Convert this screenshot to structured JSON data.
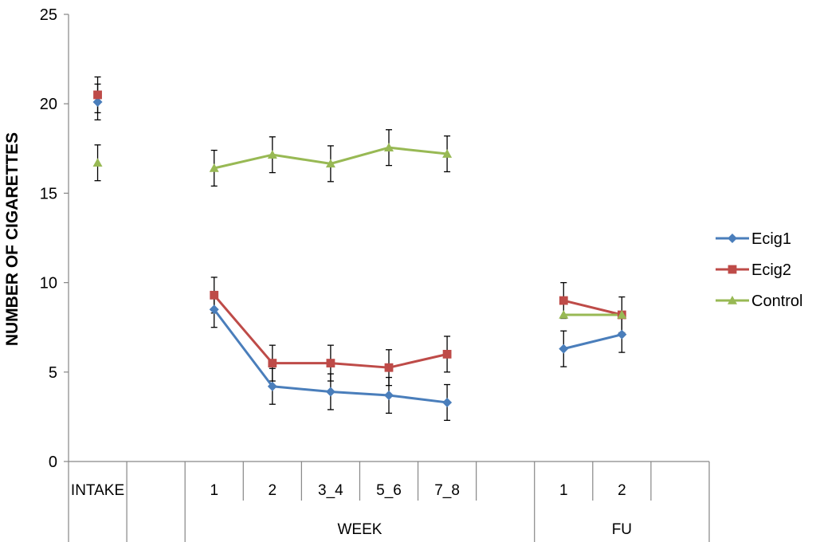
{
  "chart_data": {
    "type": "line",
    "title": "",
    "xlabel": "",
    "ylabel": "NUMBER OF CIGARETTES",
    "ylim": [
      0,
      25
    ],
    "yticks": [
      0,
      5,
      10,
      15,
      20,
      25
    ],
    "grid": false,
    "legend_position": "right",
    "categories": [
      "INTAKE",
      "",
      "1",
      "2",
      "3_4",
      "5_6",
      "7_8",
      "",
      "1",
      "2",
      ""
    ],
    "groups": [
      {
        "label": "WEEK",
        "start": 2,
        "end": 7
      },
      {
        "label": "FU",
        "start": 8,
        "end": 10
      }
    ],
    "series": [
      {
        "name": "Ecig1",
        "color": "#4a7ebb",
        "marker": "diamond",
        "values": [
          20.1,
          null,
          8.5,
          4.2,
          3.9,
          3.7,
          3.3,
          null,
          6.3,
          7.1,
          null
        ],
        "errors": [
          1.0,
          null,
          1.0,
          1.0,
          1.0,
          1.0,
          1.0,
          null,
          1.0,
          1.0,
          null
        ]
      },
      {
        "name": "Ecig2",
        "color": "#be4b48",
        "marker": "square",
        "values": [
          20.5,
          null,
          9.3,
          5.5,
          5.5,
          5.25,
          6.0,
          null,
          9.0,
          8.2,
          null
        ],
        "errors": [
          1.0,
          null,
          1.0,
          1.0,
          1.0,
          1.0,
          1.0,
          null,
          1.0,
          1.0,
          null
        ]
      },
      {
        "name": "Control",
        "color": "#98b954",
        "marker": "triangle",
        "values": [
          16.7,
          null,
          16.4,
          17.15,
          16.65,
          17.55,
          17.2,
          null,
          8.2,
          8.2,
          null
        ],
        "errors": [
          1.0,
          null,
          1.0,
          1.0,
          1.0,
          1.0,
          1.0,
          null,
          null,
          null,
          null
        ]
      }
    ]
  }
}
